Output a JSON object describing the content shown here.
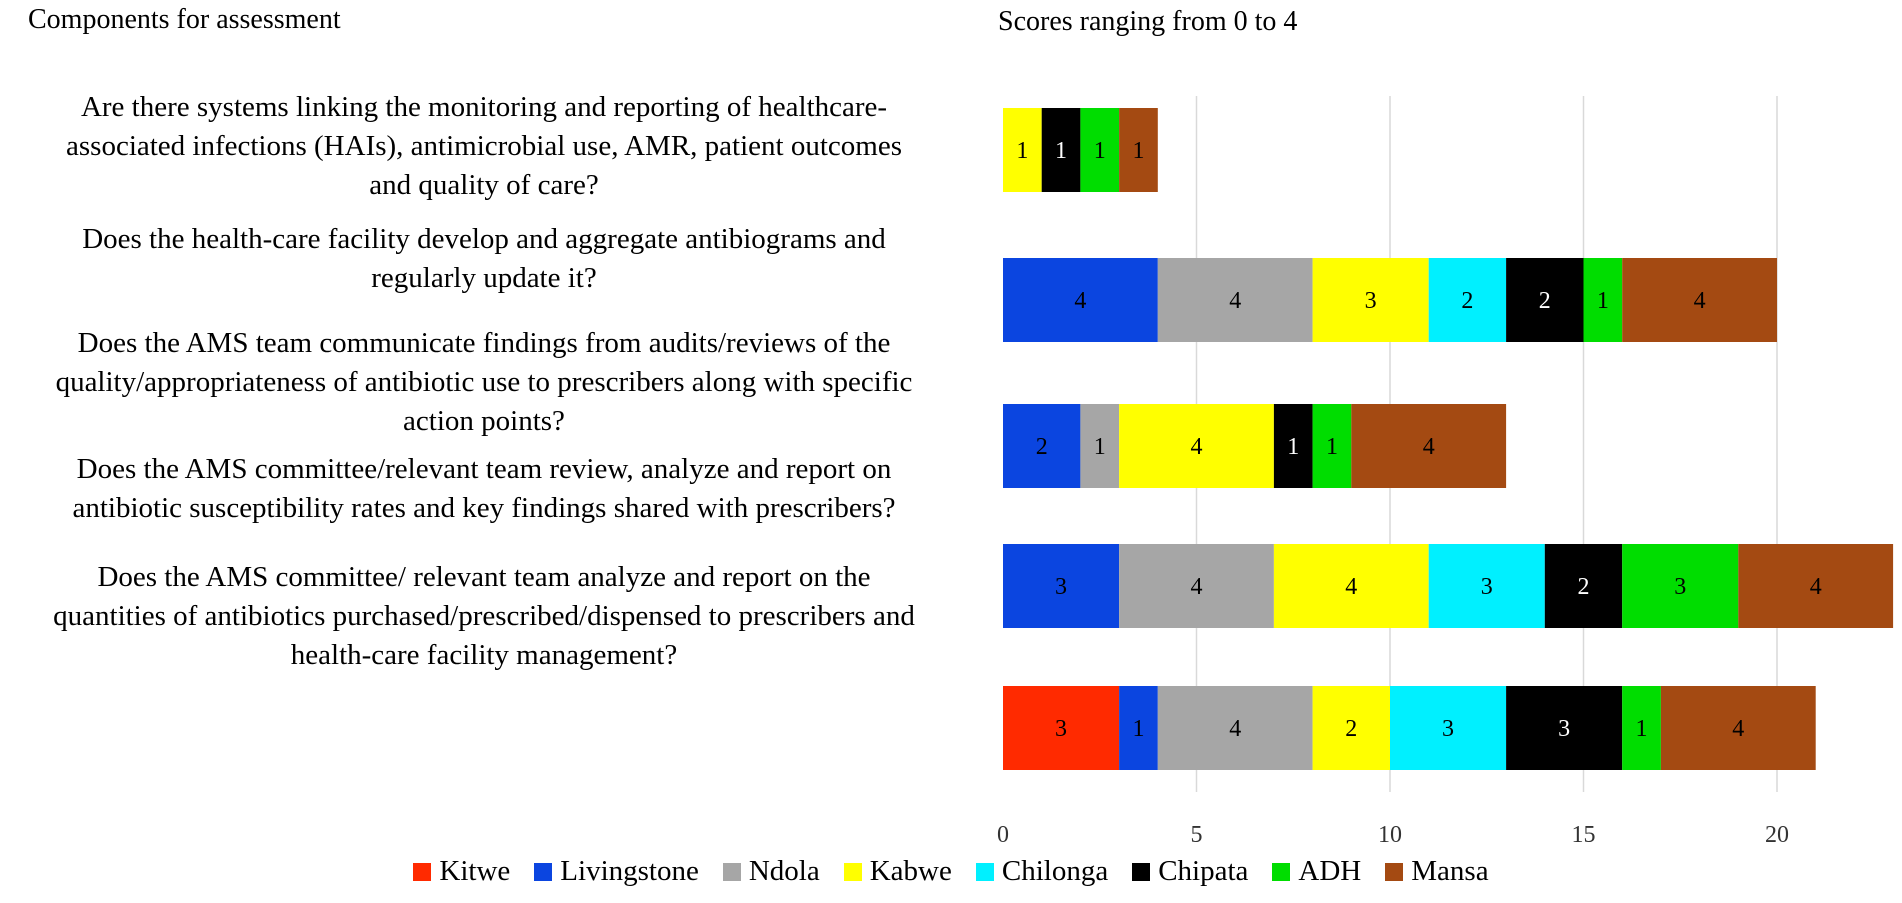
{
  "chart_data": {
    "type": "bar",
    "orientation": "horizontal",
    "stacked": true,
    "header_left": "Components for assessment",
    "header_right": "Scores ranging from 0 to 4",
    "categories": [
      "Are there systems linking the monitoring and reporting of healthcare-\nassociated infections (HAIs), antimicrobial use, AMR, patient outcomes\nand quality of care?",
      "Does the health-care facility develop and aggregate antibiograms  and\nregularly update it?",
      "Does the AMS team communicate findings from audits/reviews of the\nquality/appropriateness of antibiotic use to prescribers along with specific\naction points?",
      "Does the AMS committee/relevant team review, analyze and report on\nantibiotic susceptibility rates and key findings shared with prescribers?",
      "Does the AMS committee/ relevant team analyze and report on the\nquantities of antibiotics purchased/prescribed/dispensed to prescribers and\nhealth-care facility management?"
    ],
    "series": [
      {
        "name": "Kitwe",
        "color": "#FF2A00",
        "label_color": "#000000",
        "values": [
          0,
          0,
          0,
          0,
          3
        ]
      },
      {
        "name": "Livingstone",
        "color": "#0B45E0",
        "label_color": "#000000",
        "values": [
          0,
          4,
          2,
          3,
          1
        ]
      },
      {
        "name": "Ndola",
        "color": "#A6A6A6",
        "label_color": "#000000",
        "values": [
          0,
          4,
          1,
          4,
          4
        ]
      },
      {
        "name": "Kabwe",
        "color": "#FFFF00",
        "label_color": "#000000",
        "values": [
          1,
          3,
          4,
          4,
          2
        ]
      },
      {
        "name": "Chilonga",
        "color": "#00F0FF",
        "label_color": "#000000",
        "values": [
          0,
          2,
          0,
          3,
          3
        ]
      },
      {
        "name": "Chipata",
        "color": "#000000",
        "label_color": "#FFFFFF",
        "values": [
          1,
          2,
          1,
          2,
          3
        ]
      },
      {
        "name": "ADH",
        "color": "#00DD00",
        "label_color": "#000000",
        "values": [
          1,
          1,
          1,
          3,
          1
        ]
      },
      {
        "name": "Mansa",
        "color": "#A44A12",
        "label_color": "#000000",
        "values": [
          1,
          4,
          4,
          4,
          4
        ]
      }
    ],
    "xlim": [
      0,
      23
    ],
    "xticks": [
      0,
      5,
      10,
      15,
      20
    ],
    "grid": true,
    "legend_position": "bottom"
  }
}
